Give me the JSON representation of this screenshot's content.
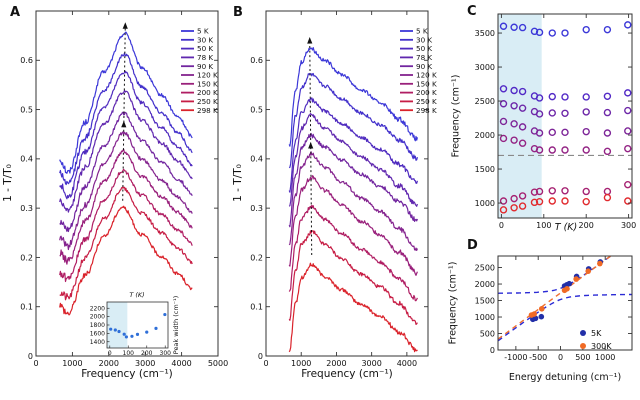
{
  "panels": {
    "a": {
      "label": "A",
      "xlabel": "Frequency (cm⁻¹)",
      "ylabel": "1 - T/T₀"
    },
    "b": {
      "label": "B",
      "xlabel": "Frequency (cm⁻¹)",
      "ylabel": "1 - T/T₀"
    },
    "c": {
      "label": "C",
      "xlabel": "T (K)",
      "ylabel": "Frequency (cm⁻¹)"
    },
    "d": {
      "label": "D",
      "xlabel": "Energy detuning (cm⁻¹)",
      "ylabel": "Frequency (cm⁻¹)"
    },
    "inset": {
      "xlabel": "T (K)",
      "ylabel": "Peak width (cm⁻¹)"
    }
  },
  "chart_data": [
    {
      "panel": "A",
      "type": "line",
      "xlabel": "Frequency (cm⁻¹)",
      "ylabel": "1 - T/T₀",
      "xlim": [
        0,
        5000
      ],
      "ylim": [
        0,
        0.7
      ],
      "xticks": [
        0,
        1000,
        2000,
        3000,
        4000,
        5000
      ],
      "yticks": [
        "0",
        "0.1",
        "0.2",
        "0.3",
        "0.4",
        "0.5",
        "0.6"
      ],
      "legend": [
        "5 K",
        "30 K",
        "50 K",
        "78 K",
        "90 K",
        "120 K",
        "150 K",
        "200 K",
        "250 K",
        "298 K"
      ],
      "colors": [
        "#3c38d8",
        "#4230cb",
        "#4f2bbf",
        "#6028af",
        "#71259f",
        "#84238e",
        "#99207b",
        "#b01e63",
        "#c71e45",
        "#da232b"
      ],
      "series": [
        {
          "name": "5 K",
          "start": 0.4,
          "dip": 0.372,
          "peak": 0.655,
          "end": 0.445,
          "peak_x": 2450
        },
        {
          "name": "30 K",
          "start": 0.373,
          "dip": 0.348,
          "peak": 0.612,
          "end": 0.415,
          "peak_x": 2442
        },
        {
          "name": "50 K",
          "start": 0.348,
          "dip": 0.322,
          "peak": 0.576,
          "end": 0.388,
          "peak_x": 2434
        },
        {
          "name": "78 K",
          "start": 0.315,
          "dip": 0.295,
          "peak": 0.537,
          "end": 0.362,
          "peak_x": 2426
        },
        {
          "name": "90 K",
          "start": 0.272,
          "dip": 0.258,
          "peak": 0.492,
          "end": 0.328,
          "peak_x": 2418
        },
        {
          "name": "120 K",
          "start": 0.238,
          "dip": 0.224,
          "peak": 0.453,
          "end": 0.292,
          "peak_x": 2410
        },
        {
          "name": "150 K",
          "start": 0.208,
          "dip": 0.193,
          "peak": 0.416,
          "end": 0.262,
          "peak_x": 2402
        },
        {
          "name": "200 K",
          "start": 0.168,
          "dip": 0.157,
          "peak": 0.376,
          "end": 0.227,
          "peak_x": 2394
        },
        {
          "name": "250 K",
          "start": 0.128,
          "dip": 0.118,
          "peak": 0.34,
          "end": 0.19,
          "peak_x": 2387
        },
        {
          "name": "298 K",
          "start": 0.103,
          "dip": 0.086,
          "peak": 0.302,
          "end": 0.135,
          "peak_x": 2380
        }
      ],
      "arrow": {
        "x1": 2382,
        "y1": 0.315,
        "x2": 2452,
        "y2": 0.668,
        "mid_y": 0.468
      },
      "inset": {
        "xlabel": "T (K)",
        "ylabel": "Peak width (cm⁻¹)",
        "xlim": [
          -15,
          315
        ],
        "ylim": [
          1250,
          2350
        ],
        "xticks": [
          0,
          100,
          200,
          300
        ],
        "yticks": [
          1400,
          1600,
          1800,
          2000,
          2200
        ],
        "shaded_T": [
          0,
          95
        ],
        "T": [
          5,
          30,
          50,
          78,
          90,
          120,
          150,
          200,
          250,
          298
        ],
        "width": [
          1700,
          1680,
          1645,
          1580,
          1515,
          1530,
          1575,
          1630,
          1720,
          2050
        ],
        "dot_color": "#2f6fd8"
      }
    },
    {
      "panel": "B",
      "type": "line",
      "xlabel": "Frequency (cm⁻¹)",
      "ylabel": "1 - T/T₀",
      "xlim": [
        0,
        4600
      ],
      "ylim": [
        0,
        0.7
      ],
      "xticks": [
        0,
        1000,
        2000,
        3000,
        4000
      ],
      "yticks": [
        "0",
        "0.1",
        "0.2",
        "0.3",
        "0.4",
        "0.5",
        "0.6"
      ],
      "legend": [
        "5 K",
        "30 K",
        "50 K",
        "78 K",
        "90 K",
        "120 K",
        "150 K",
        "200 K",
        "250 K",
        "298 K"
      ],
      "colors": [
        "#3c38d8",
        "#4230cb",
        "#4f2bbf",
        "#6028af",
        "#71259f",
        "#84238e",
        "#99207b",
        "#b01e63",
        "#c71e45",
        "#da232b"
      ],
      "series": [
        {
          "name": "5 K",
          "start": 0.425,
          "peak": 0.625,
          "end": 0.44,
          "peak_x": 1245
        },
        {
          "name": "30 K",
          "start": 0.378,
          "peak": 0.572,
          "end": 0.4,
          "peak_x": 1251
        },
        {
          "name": "50 K",
          "start": 0.332,
          "peak": 0.52,
          "end": 0.352,
          "peak_x": 1257
        },
        {
          "name": "78 K",
          "start": 0.3,
          "peak": 0.488,
          "end": 0.305,
          "peak_x": 1263
        },
        {
          "name": "90 K",
          "start": 0.262,
          "peak": 0.448,
          "end": 0.275,
          "peak_x": 1269
        },
        {
          "name": "120 K",
          "start": 0.222,
          "peak": 0.41,
          "end": 0.215,
          "peak_x": 1275
        },
        {
          "name": "150 K",
          "start": 0.182,
          "peak": 0.363,
          "end": 0.168,
          "peak_x": 1281
        },
        {
          "name": "200 K",
          "start": 0.128,
          "peak": 0.303,
          "end": 0.115,
          "peak_x": 1287
        },
        {
          "name": "250 K",
          "start": 0.072,
          "peak": 0.252,
          "end": 0.065,
          "peak_x": 1293
        },
        {
          "name": "298 K",
          "start": 0.006,
          "peak": 0.185,
          "end": 0.01,
          "peak_x": 1300
        }
      ],
      "arrow": {
        "x1": 1298,
        "y1": 0.205,
        "x2": 1242,
        "y2": 0.638,
        "mid_y": 0.425
      }
    },
    {
      "panel": "C",
      "type": "scatter",
      "xlabel": "T (K)",
      "ylabel": "Frequency (cm⁻¹)",
      "xlim": [
        -8,
        308
      ],
      "ylim": [
        780,
        3780
      ],
      "xticks": [
        0,
        100,
        200,
        300
      ],
      "yticks": [
        1000,
        1500,
        2000,
        2500,
        3000,
        3500
      ],
      "shaded_T": [
        0,
        95
      ],
      "dashed_line_y": 1700,
      "T": [
        5,
        30,
        50,
        78,
        90,
        120,
        150,
        200,
        250,
        298
      ],
      "series": [
        {
          "color": "#3c38d8",
          "values": [
            3600,
            3585,
            3580,
            3525,
            3510,
            3500,
            3500,
            3550,
            3550,
            3620
          ]
        },
        {
          "color": "#5229c6",
          "values": [
            2680,
            2655,
            2640,
            2575,
            2545,
            2565,
            2560,
            2560,
            2570,
            2620
          ]
        },
        {
          "color": "#6d27a8",
          "values": [
            2460,
            2430,
            2395,
            2345,
            2310,
            2325,
            2320,
            2340,
            2330,
            2360
          ]
        },
        {
          "color": "#7d2598",
          "values": [
            2200,
            2165,
            2120,
            2060,
            2030,
            2040,
            2040,
            2050,
            2030,
            2060
          ]
        },
        {
          "color": "#932384",
          "values": [
            1950,
            1925,
            1880,
            1800,
            1780,
            1780,
            1780,
            1780,
            1760,
            1800
          ]
        },
        {
          "color": "#a62272",
          "values": [
            1030,
            1065,
            1105,
            1160,
            1170,
            1180,
            1180,
            1170,
            1170,
            1270
          ]
        },
        {
          "color": "#e12a2e",
          "values": [
            900,
            930,
            955,
            1010,
            1020,
            1030,
            1030,
            1020,
            1080,
            1030
          ]
        }
      ]
    },
    {
      "panel": "D",
      "type": "scatter",
      "xlabel": "Energy detuning (cm⁻¹)",
      "ylabel": "Frequency (cm⁻¹)",
      "xlim": [
        -1400,
        1600
      ],
      "ylim": [
        0,
        2850
      ],
      "xticks": [
        -1000,
        -500,
        0,
        500,
        1000
      ],
      "yticks": [
        0,
        500,
        1000,
        1500,
        2000,
        2500
      ],
      "series": [
        {
          "name": "5K",
          "color": "#222fa8",
          "points": [
            [
              -620,
              930
            ],
            [
              -560,
              960
            ],
            [
              -430,
              1010
            ],
            [
              90,
              1940
            ],
            [
              140,
              1975
            ],
            [
              195,
              2010
            ],
            [
              360,
              2230
            ],
            [
              630,
              2460
            ],
            [
              890,
              2670
            ]
          ]
        },
        {
          "name": "300K",
          "color": "#f06a25",
          "points": [
            [
              -650,
              1060
            ],
            [
              -590,
              1090
            ],
            [
              -420,
              1250
            ],
            [
              90,
              1810
            ],
            [
              145,
              1855
            ],
            [
              350,
              2150
            ],
            [
              620,
              2390
            ],
            [
              880,
              2620
            ]
          ]
        }
      ],
      "model": {
        "exciton_y": 1700,
        "coupling": 170,
        "diagonal_offset": 1730,
        "branch_color": "#2b2bd5",
        "diagonal_color": "#f07030"
      }
    }
  ]
}
